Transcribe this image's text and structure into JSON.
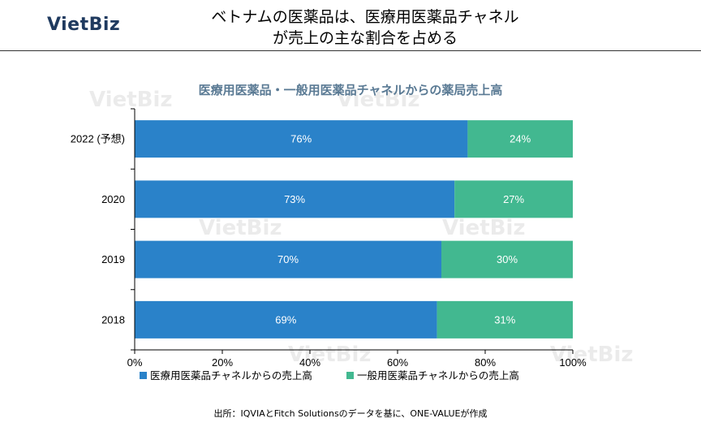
{
  "header": {
    "logo": "VietBiz",
    "title_line1": "ベトナムの医薬品は、医療用医薬品チャネル",
    "title_line2": "が売上の主な割合を占める"
  },
  "watermark": "VietBiz",
  "source": "出所：IQVIAとFitch Solutionsのデータを基に、ONE-VALUEが作成",
  "colors": {
    "series1": "#2a82c9",
    "series2": "#42b890"
  },
  "chart_data": {
    "type": "bar",
    "orientation": "horizontal",
    "stacked": true,
    "title": "医療用医薬品・一般用医薬品チャネルからの薬局売上高",
    "categories": [
      "2022 (予想)",
      "2020",
      "2019",
      "2018"
    ],
    "series": [
      {
        "name": "医療用医薬品チャネルからの売上高",
        "values": [
          76,
          73,
          70,
          69
        ],
        "labels": [
          "76%",
          "73%",
          "70%",
          "69%"
        ]
      },
      {
        "name": "一般用医薬品チャネルからの売上高",
        "values": [
          24,
          27,
          30,
          31
        ],
        "labels": [
          "24%",
          "27%",
          "30%",
          "31%"
        ]
      }
    ],
    "xlim": [
      0,
      100
    ],
    "x_ticks": [
      "0%",
      "20%",
      "40%",
      "60%",
      "80%",
      "100%"
    ],
    "legend_position": "bottom",
    "grid": false
  }
}
